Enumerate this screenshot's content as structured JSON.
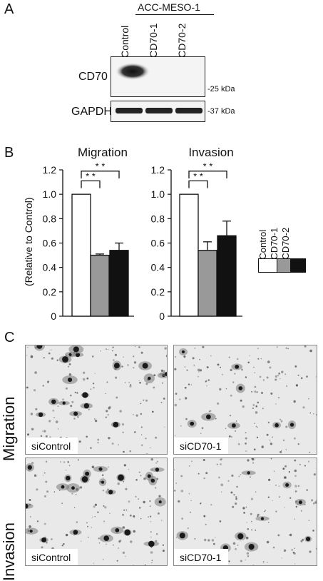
{
  "panel_a": {
    "letter": "A",
    "cell_line": "ACC-MESO-1",
    "lanes": [
      "siControl",
      "siCD70-1",
      "siCD70-2"
    ],
    "rows": [
      {
        "label": "CD70",
        "marker": "-25 kDa"
      },
      {
        "label": "GAPDH",
        "marker": "-37 kDa"
      }
    ]
  },
  "panel_b": {
    "letter": "B",
    "ylabel": "(Relative to Control)",
    "legend": [
      {
        "name": "siControl",
        "color": "#ffffff"
      },
      {
        "name": "siCD70-1",
        "color": "#999999"
      },
      {
        "name": "siCD70-2",
        "color": "#111111"
      }
    ],
    "significance": "* *"
  },
  "chart_data": [
    {
      "type": "bar",
      "title": "Migration",
      "ylabel": "(Relative to Control)",
      "ylim": [
        0,
        1.2
      ],
      "yticks": [
        "0",
        "0.2",
        "0.4",
        "0.6",
        "0.8",
        "1.0",
        "1.2"
      ],
      "categories": [
        "siControl",
        "siCD70-1",
        "siCD70-2"
      ],
      "values": [
        1.0,
        0.5,
        0.54
      ],
      "errors": [
        0,
        0.01,
        0.06
      ]
    },
    {
      "type": "bar",
      "title": "Invasion",
      "ylabel": "(Relative to Control)",
      "ylim": [
        0,
        1.2
      ],
      "yticks": [
        "0",
        "0.2",
        "0.4",
        "0.6",
        "0.8",
        "1.0",
        "1.2"
      ],
      "categories": [
        "siControl",
        "siCD70-1",
        "siCD70-2"
      ],
      "values": [
        1.0,
        0.54,
        0.66
      ],
      "errors": [
        0,
        0.07,
        0.12
      ]
    }
  ],
  "panel_c": {
    "letter": "C",
    "rows": [
      {
        "label": "Migration",
        "images": [
          "siControl",
          "siCD70-1"
        ]
      },
      {
        "label": "Invasion",
        "images": [
          "siControl",
          "siCD70-1"
        ]
      }
    ]
  }
}
